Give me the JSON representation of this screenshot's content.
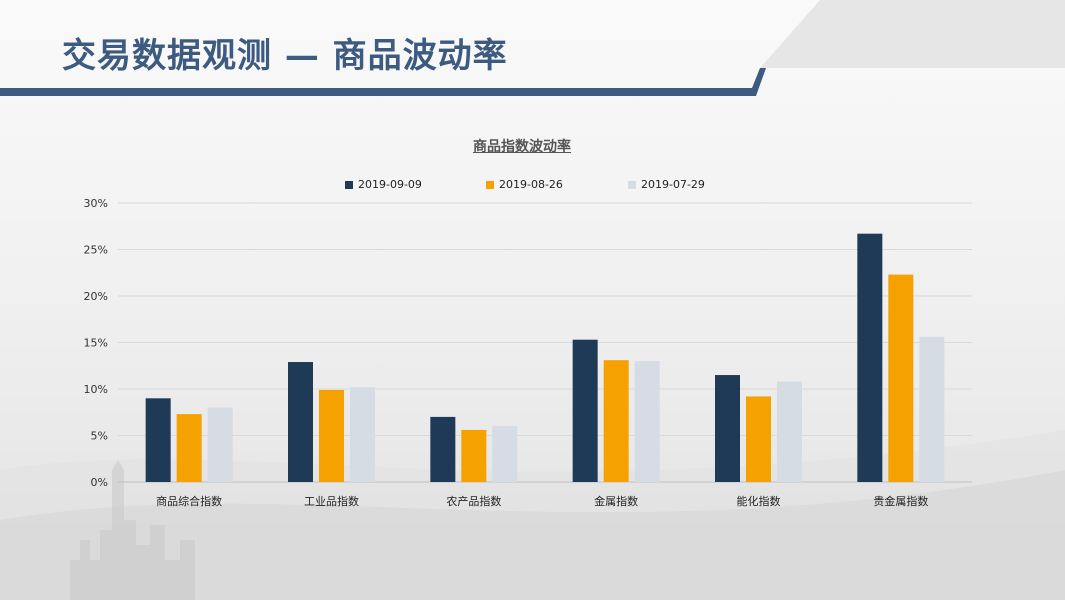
{
  "header": {
    "title": "交易数据观测 — 商品波动率"
  },
  "colors": {
    "accent": "#3d5a80",
    "series1": "#1e3a57",
    "series2": "#f5a200",
    "series3": "#d6dce4",
    "grid": "#d9d9d9"
  },
  "chart_data": {
    "type": "bar",
    "title": "商品指数波动率",
    "xlabel": "",
    "ylabel": "",
    "categories": [
      "商品综合指数",
      "工业品指数",
      "农产品指数",
      "金属指数",
      "能化指数",
      "贵金属指数"
    ],
    "series": [
      {
        "name": "2019-09-09",
        "values": [
          9.0,
          12.9,
          7.0,
          15.3,
          11.5,
          26.7
        ]
      },
      {
        "name": "2019-08-26",
        "values": [
          7.3,
          9.9,
          5.6,
          13.1,
          9.2,
          22.3
        ]
      },
      {
        "name": "2019-07-29",
        "values": [
          8.0,
          10.2,
          6.0,
          13.0,
          10.8,
          15.6
        ]
      }
    ],
    "yticks": [
      "0%",
      "5%",
      "10%",
      "15%",
      "20%",
      "25%",
      "30%"
    ],
    "ylim": [
      0,
      30
    ],
    "grid": true,
    "legend_position": "top"
  }
}
